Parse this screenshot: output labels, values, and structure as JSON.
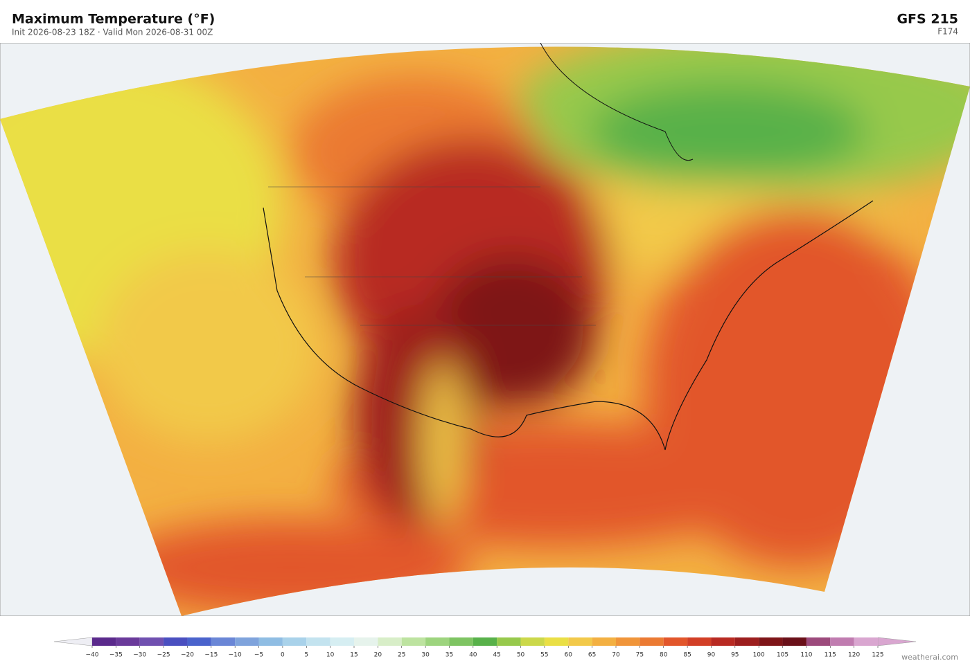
{
  "header": {
    "title": "Maximum Temperature  (°F)",
    "subtitle": "Init 2026-08-23 18Z  ·  Valid Mon 2026-08-31 00Z",
    "model": "GFS  215",
    "forecast_hour": "F174"
  },
  "colorbar": {
    "ticks": [
      {
        "value": -40,
        "label": "−40"
      },
      {
        "value": -35,
        "label": "−35"
      },
      {
        "value": -30,
        "label": "−30"
      },
      {
        "value": -25,
        "label": "−25"
      },
      {
        "value": -20,
        "label": "−20"
      },
      {
        "value": -15,
        "label": "−15"
      },
      {
        "value": -10,
        "label": "−10"
      },
      {
        "value": -5,
        "label": "−5"
      },
      0,
      5,
      10,
      15,
      20,
      25,
      30,
      35,
      40,
      45,
      50,
      55,
      60,
      65,
      70,
      75,
      80,
      85,
      90,
      95,
      100,
      105,
      110,
      115,
      120,
      125
    ],
    "colors": [
      "#5b2a8c",
      "#6a3a9a",
      "#7050b0",
      "#4a4fc0",
      "#4a63cc",
      "#6a86d6",
      "#7fa3dc",
      "#8fbde3",
      "#a9d2ea",
      "#c3e3ef",
      "#d6eef2",
      "#e6f3ec",
      "#d8eec8",
      "#bde3a0",
      "#9dd47e",
      "#7ec462",
      "#58b14a",
      "#97c94c",
      "#cbd84a",
      "#eadf45",
      "#f2c94a",
      "#f3b042",
      "#f0953a",
      "#eb7a33",
      "#e2562b",
      "#d23f26",
      "#b82a22",
      "#9c1e1e",
      "#7e1518",
      "#6a1019",
      "#9c4a7c",
      "#c07cb0",
      "#d9a6d0"
    ]
  },
  "footer": {
    "credit": "weatherai.com"
  }
}
